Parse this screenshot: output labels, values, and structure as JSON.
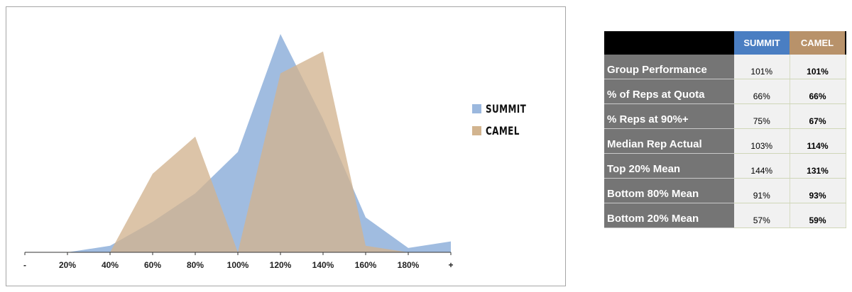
{
  "chart_data": {
    "type": "area",
    "categories": [
      "-",
      "20%",
      "40%",
      "60%",
      "80%",
      "100%",
      "120%",
      "140%",
      "160%",
      "180%",
      "+"
    ],
    "series": [
      {
        "name": "SUMMIT",
        "color": "#9bb8de",
        "values": [
          0,
          0,
          3,
          14,
          27,
          46,
          100,
          61,
          16,
          2,
          5
        ]
      },
      {
        "name": "CAMEL",
        "color": "#d2b48f",
        "values": [
          0,
          0,
          0,
          36,
          53,
          0,
          82,
          92,
          3,
          0,
          0
        ]
      }
    ],
    "ylim": [
      0,
      100
    ],
    "grid": false,
    "legend_position": "right"
  },
  "legend": {
    "items": [
      {
        "label": "SUMMIT",
        "color": "#9bb8de"
      },
      {
        "label": "CAMEL",
        "color": "#d2b48f"
      }
    ]
  },
  "table": {
    "headers": {
      "blank": "",
      "summit": "SUMMIT",
      "camel": "CAMEL"
    },
    "rows": [
      {
        "label": "Group Performance",
        "summit": "101%",
        "camel": "101%"
      },
      {
        "label": "% of Reps at Quota",
        "summit": "66%",
        "camel": "66%"
      },
      {
        "label": "% Reps at 90%+",
        "summit": "75%",
        "camel": "67%"
      },
      {
        "label": "Median Rep Actual",
        "summit": "103%",
        "camel": "114%"
      },
      {
        "label": "Top 20% Mean",
        "summit": "144%",
        "camel": "131%"
      },
      {
        "label": "Bottom 80% Mean",
        "summit": "91%",
        "camel": "93%"
      },
      {
        "label": "Bottom 20% Mean",
        "summit": "57%",
        "camel": "59%"
      }
    ]
  }
}
